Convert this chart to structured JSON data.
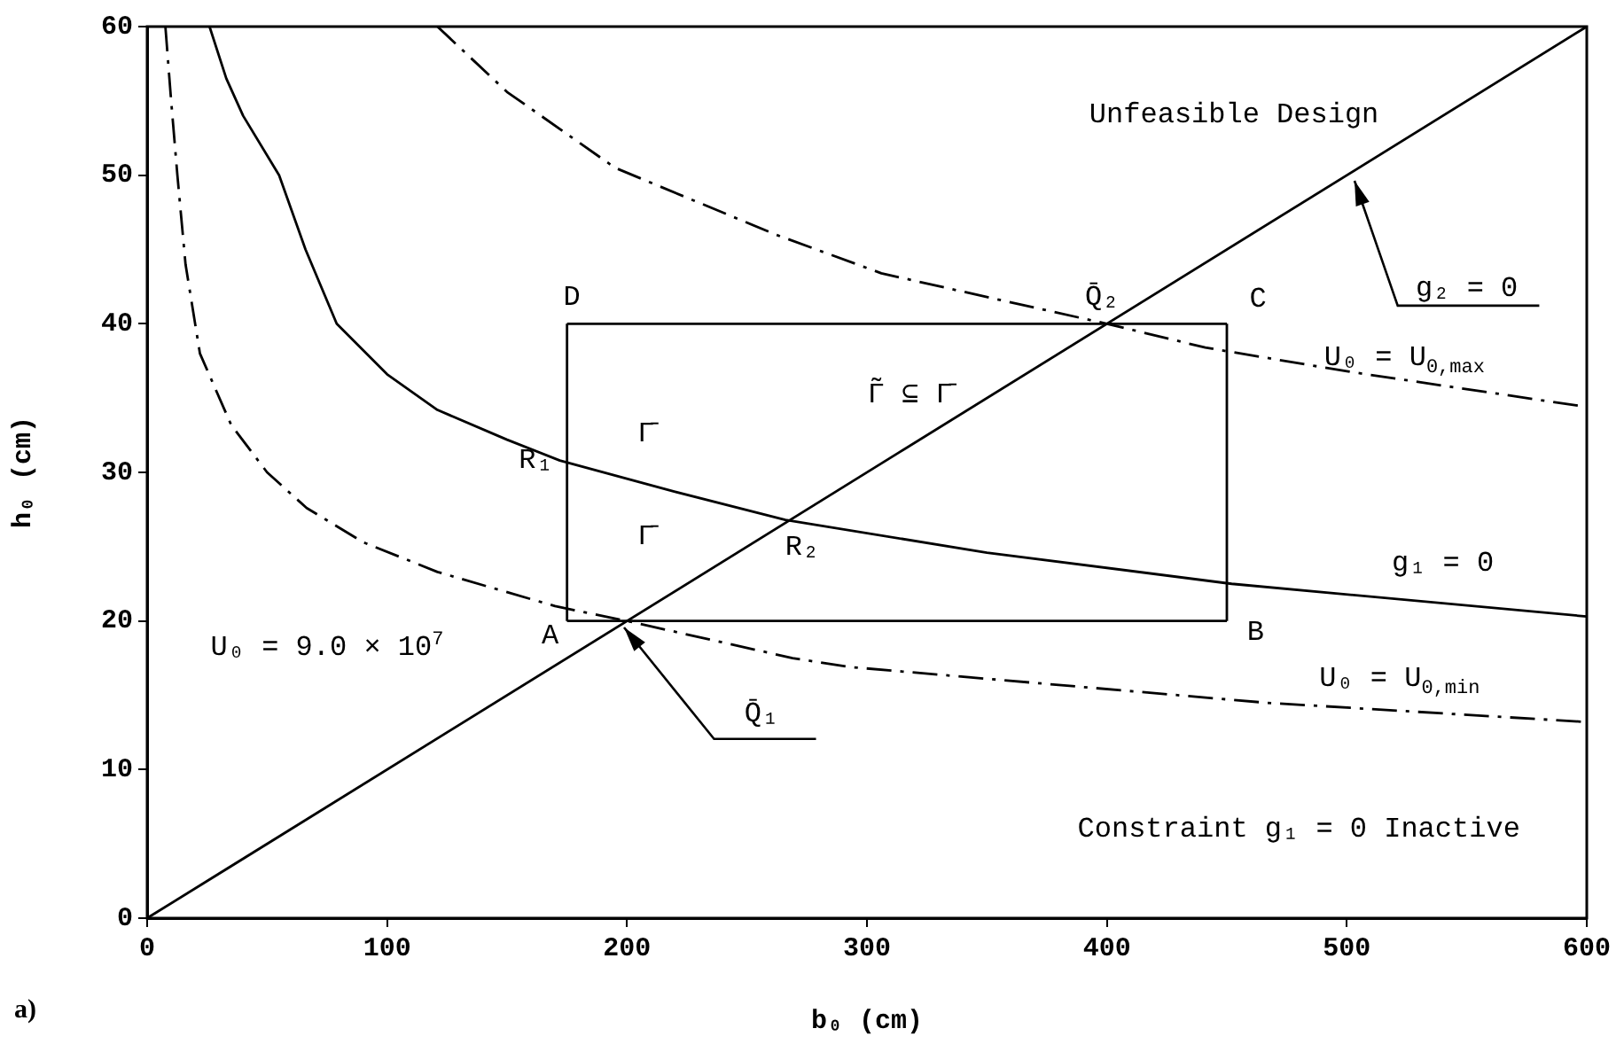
{
  "chart_data": {
    "type": "line",
    "xlabel": "b₀ (cm)",
    "ylabel": "h₀ (cm)",
    "xlim": [
      0,
      600
    ],
    "ylim": [
      0,
      60
    ],
    "xticks": [
      0,
      100,
      200,
      300,
      400,
      500,
      600
    ],
    "yticks": [
      0,
      10,
      20,
      30,
      40,
      50,
      60
    ],
    "legend": false,
    "marker": "none",
    "series": [
      {
        "color": "#000000",
        "line_style": "solid",
        "x": [
          0,
          600
        ],
        "values": [
          0,
          60
        ]
      },
      {
        "color": "#000000",
        "line_style": "solid",
        "x": [
          26,
          33,
          40,
          55,
          66,
          79,
          100,
          121,
          150,
          172,
          220,
          266,
          350,
          452,
          600
        ],
        "values": [
          60,
          56.5,
          54,
          50,
          45,
          40,
          36.6,
          34.2,
          32.2,
          30.8,
          28.7,
          26.8,
          24.6,
          22.5,
          20.3
        ]
      },
      {
        "color": "#000000",
        "line_style": "dashed",
        "x": [
          121,
          150,
          195,
          262,
          306,
          350,
          400,
          441,
          500,
          600
        ],
        "values": [
          60,
          55.6,
          50.5,
          46,
          43.4,
          41.8,
          40,
          38.4,
          36.8,
          34.4
        ]
      },
      {
        "color": "#000000",
        "line_style": "dashed",
        "x": [
          7.6,
          10,
          12.6,
          16,
          22,
          35,
          50,
          66.5,
          90,
          121,
          170,
          200,
          269,
          293,
          466,
          600
        ],
        "values": [
          60,
          55,
          50,
          44,
          38,
          33.2,
          30,
          27.6,
          25.3,
          23.3,
          21,
          20,
          17.5,
          16.9,
          14.5,
          13.2
        ]
      },
      {
        "color": "#000000",
        "line_style": "solid",
        "x": [
          175,
          450
        ],
        "values": [
          20,
          20
        ]
      },
      {
        "color": "#000000",
        "line_style": "solid",
        "x": [
          175,
          450
        ],
        "values": [
          40,
          40
        ]
      },
      {
        "color": "#000000",
        "line_style": "solid",
        "x": [
          175,
          175
        ],
        "values": [
          20,
          40
        ]
      },
      {
        "color": "#000000",
        "line_style": "solid",
        "x": [
          450,
          450
        ],
        "values": [
          20,
          40
        ]
      }
    ],
    "annotations": [
      "Unfeasible Design",
      "Constraint g₁ = 0 Inactive",
      "U₀ = 9.0 × 10$^{7}$",
      "A",
      "B",
      "C",
      "D",
      "R₁",
      "R₂",
      "Q̄₂",
      "Q̄₁",
      "Γ̄",
      "Γ̄",
      "Γ̃ ⊆ Γ̄",
      "g₂ = 0",
      "g₁ = 0",
      "U₀ = U$_{0,max}$",
      "U₀ = U$_{0,min}$",
      "a)"
    ]
  }
}
